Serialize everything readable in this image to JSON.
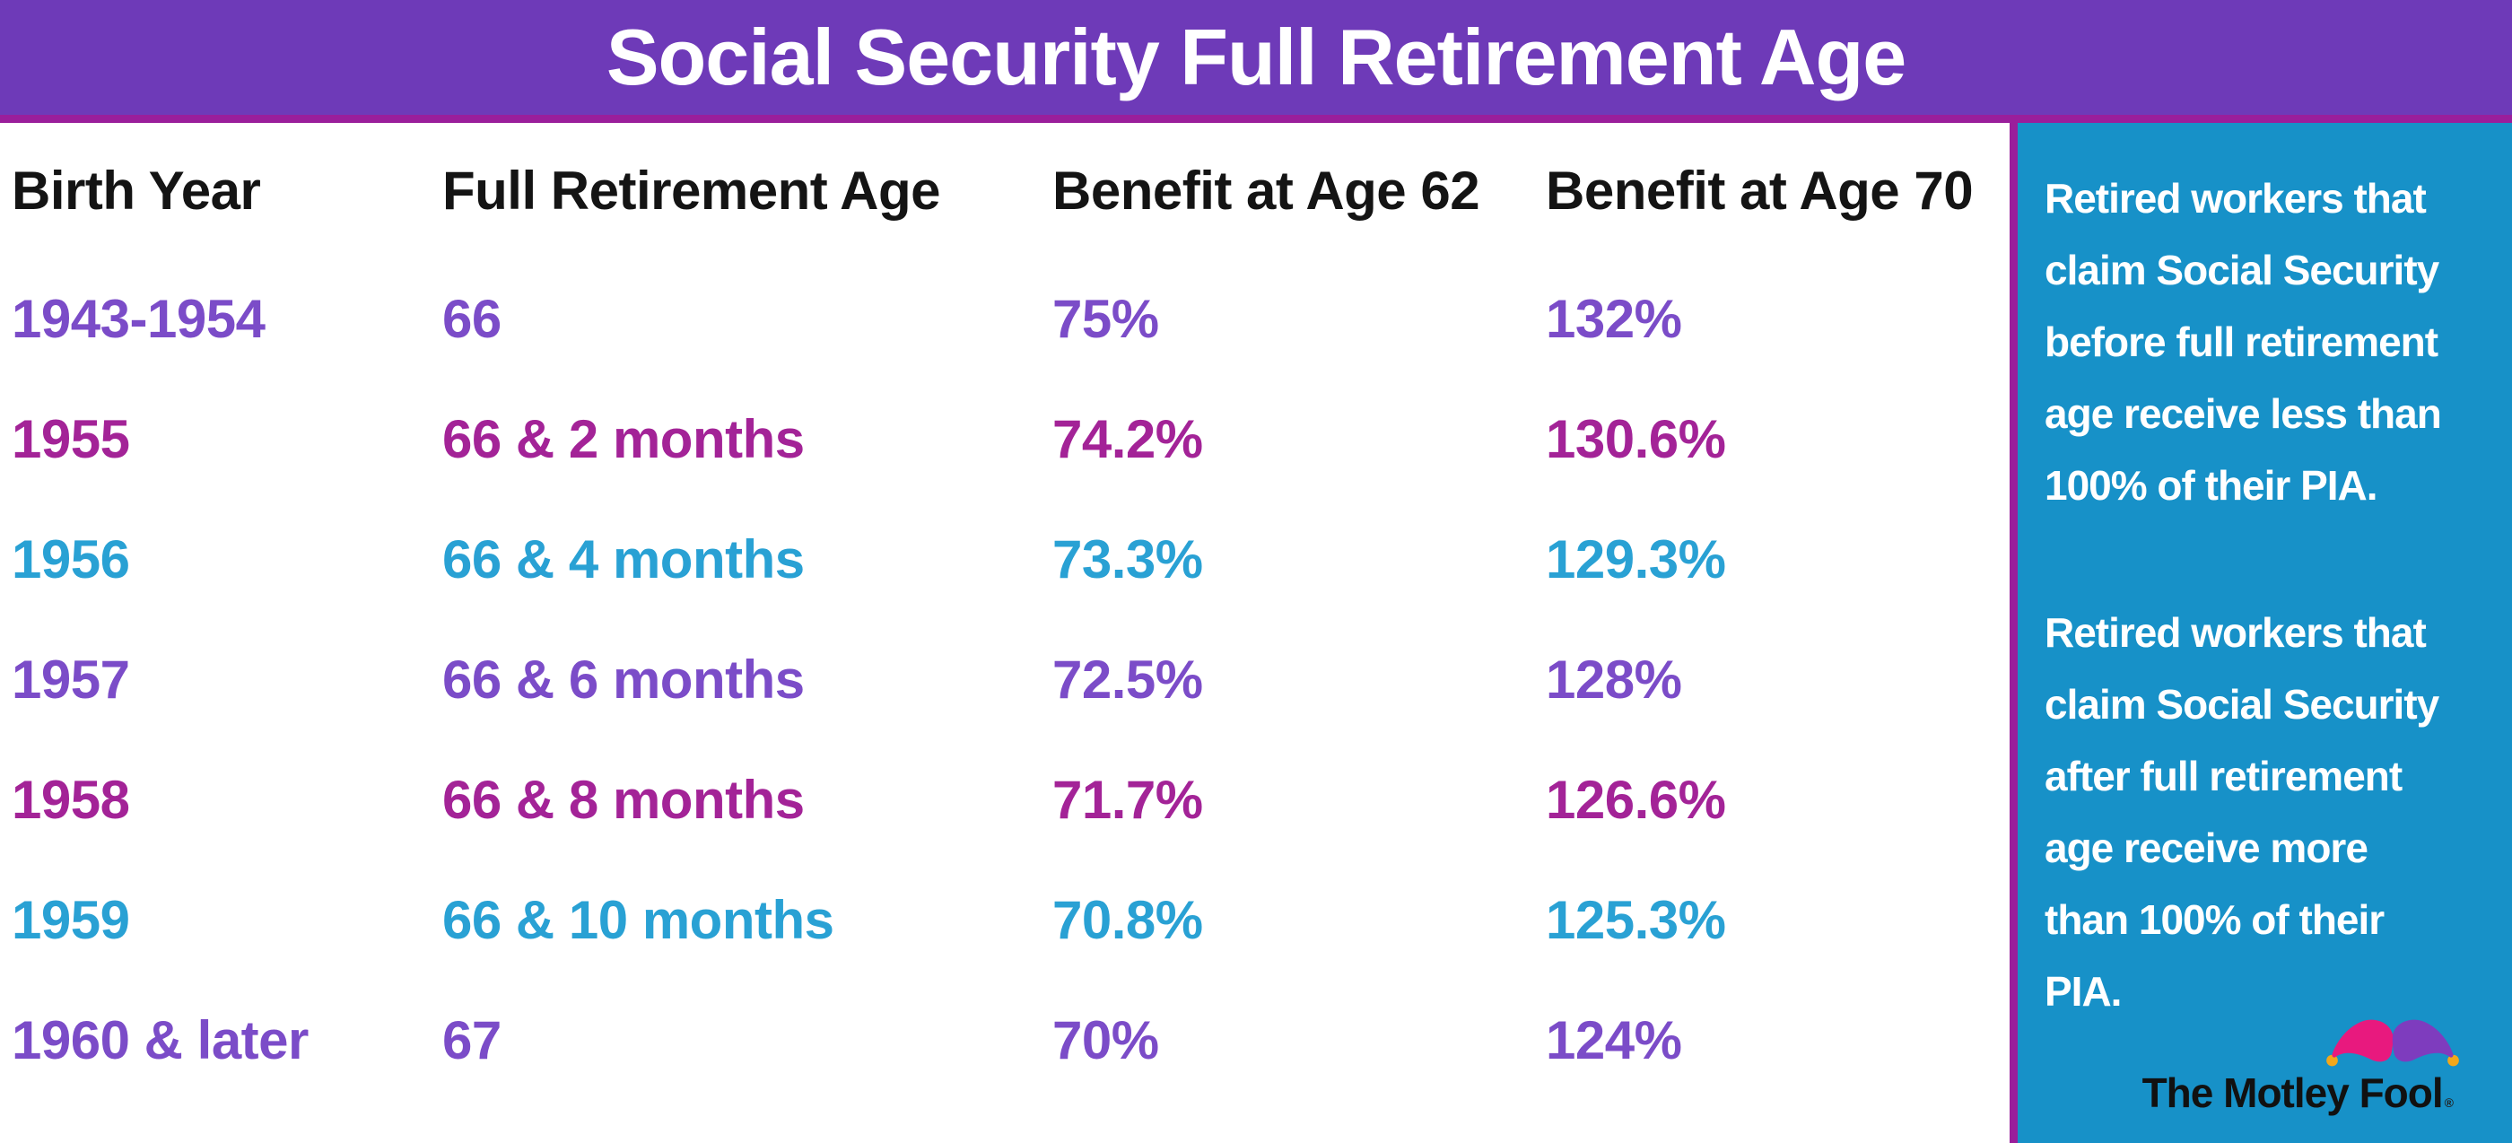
{
  "title": "Social Security Full Retirement Age",
  "colors": {
    "header_bg": "#6E3AB8",
    "accent_magenta": "#9A1E9B",
    "sidebar_bg": "#1791C8",
    "row_purple": "#7B4CC8",
    "row_magenta": "#A32397",
    "row_blue": "#29A1D4",
    "title_text": "#FFFFFF",
    "column_header_text": "#141414",
    "sidebar_text": "#FFFFFF",
    "logo_text_color": "#111111",
    "hat_pink": "#E8197E",
    "hat_purple": "#7E3CBE",
    "hat_gold": "#F2A71B"
  },
  "table": {
    "columns": [
      {
        "key": "birth_year",
        "label": "Birth Year"
      },
      {
        "key": "full_retirement_age",
        "label": "Full Retirement Age"
      },
      {
        "key": "benefit_62",
        "label": "Benefit at Age 62"
      },
      {
        "key": "benefit_70",
        "label": "Benefit at Age 70"
      }
    ],
    "rows": [
      {
        "birth_year": "1943-1954",
        "full_retirement_age": "66",
        "benefit_62": "75%",
        "benefit_70": "132%",
        "color": "purple"
      },
      {
        "birth_year": "1955",
        "full_retirement_age": "66 & 2 months",
        "benefit_62": "74.2%",
        "benefit_70": "130.6%",
        "color": "magenta"
      },
      {
        "birth_year": "1956",
        "full_retirement_age": "66 & 4 months",
        "benefit_62": "73.3%",
        "benefit_70": "129.3%",
        "color": "blue"
      },
      {
        "birth_year": "1957",
        "full_retirement_age": "66 & 6 months",
        "benefit_62": "72.5%",
        "benefit_70": "128%",
        "color": "purple"
      },
      {
        "birth_year": "1958",
        "full_retirement_age": "66 & 8 months",
        "benefit_62": "71.7%",
        "benefit_70": "126.6%",
        "color": "magenta"
      },
      {
        "birth_year": "1959",
        "full_retirement_age": "66 & 10 months",
        "benefit_62": "70.8%",
        "benefit_70": "125.3%",
        "color": "blue"
      },
      {
        "birth_year": "1960 & later",
        "full_retirement_age": "67",
        "benefit_62": "70%",
        "benefit_70": "124%",
        "color": "purple"
      }
    ]
  },
  "sidebar": {
    "note_before": {
      "text": "Retired workers that claim Social Security before full retirement age receive less than 100% of their PIA.",
      "lines": [
        "Retired workers that",
        "claim Social Security",
        "before full retirement",
        "age receive less than",
        "100% of their PIA."
      ]
    },
    "note_after": {
      "text": "Retired workers that claim Social Security after full retirement age receive more than 100% of their PIA.",
      "lines": [
        "Retired workers that",
        "claim Social Security",
        "after full retirement",
        "age receive more",
        "than 100% of their",
        "PIA."
      ]
    },
    "logo_text": "The Motley Fool",
    "registered_mark": "®"
  },
  "chart_data": {
    "type": "table",
    "title": "Social Security Full Retirement Age",
    "columns": [
      "Birth Year",
      "Full Retirement Age",
      "Benefit at Age 62",
      "Benefit at Age 70"
    ],
    "rows": [
      [
        "1943-1954",
        "66",
        "75%",
        "132%"
      ],
      [
        "1955",
        "66 & 2 months",
        "74.2%",
        "130.6%"
      ],
      [
        "1956",
        "66 & 4 months",
        "73.3%",
        "129.3%"
      ],
      [
        "1957",
        "66 & 6 months",
        "72.5%",
        "128%"
      ],
      [
        "1958",
        "66 & 8 months",
        "71.7%",
        "126.6%"
      ],
      [
        "1959",
        "66 & 10 months",
        "70.8%",
        "125.3%"
      ],
      [
        "1960 & later",
        "67",
        "70%",
        "124%"
      ]
    ],
    "annotations": [
      "Retired workers that claim Social Security before full retirement age receive less than 100% of their PIA.",
      "Retired workers that claim Social Security after full retirement age receive more than 100% of their PIA."
    ]
  }
}
